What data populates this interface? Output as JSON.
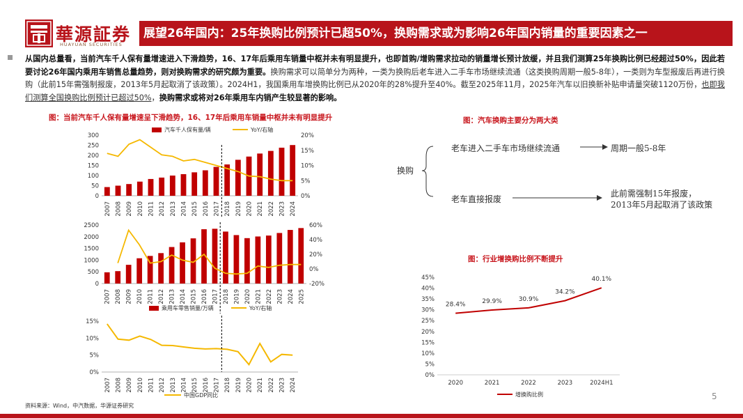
{
  "header": {
    "logo_cn": "華源証券",
    "logo_en": "HUAYUAN SECURITIES",
    "title": "展望26年国内：25年换购比例预计已超50%，换购需求或为影响26年国内销量的重要因素之一"
  },
  "paragraph": {
    "p1_bold": "从国内总量看，当前汽车千人保有量增速进入下滑趋势，16、17年后乘用车销量中枢并未有明显提升，也即首购/增购需求拉动的销量增长预计放缓，并且我们测算25年换购比例已经超过50%，因此若要讨论26年国内乘用车销售总量趋势，则对换购需求的研究颇为重要。",
    "p2": "换购需求可以简单分为两种，一类为换购后老车进入二手车市场继续流通（这类换购周期一般5-8年），一类则为车型报废后再进行换购（此前15年需强制报废，2013年5月起取消了该政策）。2024H1，我国乘用车增换购比例已从2020年的28%提升至40%。截至2025年11月，2025年汽车以旧换新补贴申请量突破1120万份，",
    "p3_ul": "也即我们测算全国换购比例预计已超过50%",
    "p3_tail": "，",
    "p4_bold": "换购需求或将对26年乘用车内销产生较显著的影响。"
  },
  "captions": {
    "left": "图：当前汽车千人保有量增速呈下滑趋势，16、17年后乘用车销量中枢并未有明显提升",
    "flow": "图：汽车换购主要分为两大类",
    "line": "图：行业增换购比例不断提升"
  },
  "flow": {
    "root": "换购",
    "branch1": "老车进入二手车市场继续流通",
    "result1": "周期一般5-8年",
    "branch2": "老车直接报废",
    "result2_line1": "此前需强制15年报废，",
    "result2_line2": "2013年5月起取消了该政策"
  },
  "footer": {
    "source": "资料来源：Wind，中汽数据，华源证券研究",
    "page": "5"
  },
  "colors": {
    "brand_red": "#b8141b",
    "bar_red": "#c00000",
    "yoy_yellow": "#f5b800",
    "line_red": "#c00000"
  },
  "chart_data": [
    {
      "type": "bar",
      "id": "ownership",
      "categories": [
        "2007",
        "2008",
        "2009",
        "2010",
        "2011",
        "2012",
        "2013",
        "2014",
        "2015",
        "2016",
        "2017",
        "2018",
        "2019",
        "2020",
        "2021",
        "2022",
        "2023",
        "2024"
      ],
      "series": [
        {
          "name": "汽车千人保有量/辆",
          "type": "bar",
          "axis": "left",
          "values": [
            43,
            50,
            58,
            70,
            83,
            90,
            100,
            107,
            116,
            126,
            143,
            155,
            178,
            194,
            209,
            222,
            238,
            251
          ]
        },
        {
          "name": "YoY/右轴",
          "type": "line",
          "axis": "right",
          "values": [
            14,
            13,
            17,
            18.5,
            16,
            13.5,
            13,
            11.5,
            12,
            11,
            10,
            9,
            8,
            6.5,
            6.3,
            5.5,
            5,
            5
          ]
        }
      ],
      "ylim_left": [
        0,
        300
      ],
      "yticks_left": [
        "0",
        "50",
        "100",
        "150",
        "200",
        "250",
        "300"
      ],
      "ylim_right": [
        0,
        20
      ],
      "yticks_right": [
        "0%",
        "5%",
        "10%",
        "15%",
        "20%"
      ]
    },
    {
      "type": "bar",
      "id": "retail",
      "categories": [
        "2007",
        "2008",
        "2009",
        "2010",
        "2011",
        "2012",
        "2013",
        "2014",
        "2015",
        "2016",
        "2017",
        "2018",
        "2019",
        "2020",
        "2021",
        "2022",
        "2023",
        "2024",
        "2025"
      ],
      "series": [
        {
          "name": "乘用车零售销量/万辆",
          "type": "bar",
          "axis": "left",
          "values": [
            480,
            530,
            800,
            1080,
            1180,
            1300,
            1560,
            1760,
            1930,
            2320,
            2340,
            2220,
            2070,
            1940,
            2010,
            2050,
            2160,
            2290,
            2370
          ]
        },
        {
          "name": "YoY/右轴",
          "type": "line",
          "axis": "right",
          "values": [
            null,
            8,
            53,
            33,
            8,
            10,
            19,
            12,
            9,
            20,
            1,
            -6,
            -7,
            -6,
            4,
            2,
            5,
            6,
            6
          ]
        }
      ],
      "ylim_left": [
        0,
        2500
      ],
      "yticks_left": [
        "0",
        "500",
        "1000",
        "1500",
        "2000",
        "2500"
      ],
      "ylim_right": [
        -20,
        60
      ],
      "yticks_right": [
        "-20%",
        "0%",
        "20%",
        "40%",
        "60%"
      ]
    },
    {
      "type": "line",
      "id": "gdp",
      "categories": [
        "2007",
        "2008",
        "2009",
        "2010",
        "2011",
        "2012",
        "2013",
        "2014",
        "2015",
        "2016",
        "2017",
        "2018",
        "2019",
        "2020",
        "2021",
        "2022",
        "2023",
        "2024"
      ],
      "series": [
        {
          "name": "中国GDP同比",
          "values": [
            14.2,
            9.7,
            9.4,
            10.6,
            9.6,
            7.9,
            7.8,
            7.4,
            7.0,
            6.8,
            6.9,
            6.7,
            6.0,
            2.2,
            8.4,
            3.0,
            5.2,
            5.0
          ]
        }
      ],
      "ylim": [
        0,
        15
      ],
      "yticks": [
        "0%",
        "5%",
        "10%",
        "15%"
      ]
    },
    {
      "type": "line",
      "id": "replacement",
      "categories": [
        "2020",
        "2021",
        "2022",
        "2023",
        "2024H1"
      ],
      "series": [
        {
          "name": "增换购比例",
          "values": [
            28.4,
            29.9,
            30.9,
            34.2,
            40.1
          ],
          "labels": [
            "28.4%",
            "29.9%",
            "30.9%",
            "34.2%",
            "40.1%"
          ]
        }
      ],
      "ylim": [
        0,
        45
      ],
      "yticks": [
        "0%",
        "5%",
        "10%",
        "15%",
        "20%",
        "25%",
        "30%",
        "35%",
        "40%",
        "45%"
      ]
    }
  ]
}
